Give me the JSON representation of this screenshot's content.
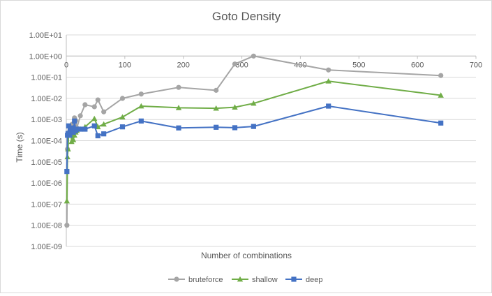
{
  "chart_data": {
    "type": "line",
    "title": "Goto Density",
    "xlabel": "Number of combinations",
    "ylabel": "Time (s)",
    "xlim": [
      0,
      700
    ],
    "xticks": [
      "0",
      "100",
      "200",
      "300",
      "400",
      "500",
      "600",
      "700"
    ],
    "xtick_values": [
      0,
      100,
      200,
      300,
      400,
      500,
      600,
      700
    ],
    "yscale": "log",
    "ylim": [
      1e-09,
      10
    ],
    "yticks": [
      "1.00E-09",
      "1.00E-08",
      "1.00E-07",
      "1.00E-06",
      "1.00E-05",
      "1.00E-04",
      "1.00E-03",
      "1.00E-02",
      "1.00E-01",
      "1.00E+00",
      "1.00E+01"
    ],
    "ytick_values": [
      1e-09,
      1e-08,
      1e-07,
      1e-06,
      1e-05,
      0.0001,
      0.001,
      0.01,
      0.1,
      1,
      10
    ],
    "grid": "horizontal",
    "legend_position": "bottom",
    "series": [
      {
        "name": "bruteforce",
        "color": "#a5a5a5",
        "marker": "circle",
        "points": [
          [
            1,
            1e-08
          ],
          [
            2,
            4e-05
          ],
          [
            4,
            0.0002
          ],
          [
            6,
            0.0003
          ],
          [
            8,
            0.0004
          ],
          [
            9,
            0.0003
          ],
          [
            10,
            0.0006
          ],
          [
            12,
            0.0005
          ],
          [
            14,
            0.0012
          ],
          [
            16,
            0.0009
          ],
          [
            18,
            0.0004
          ],
          [
            24,
            0.0015
          ],
          [
            32,
            0.005
          ],
          [
            48,
            0.004
          ],
          [
            54,
            0.0085
          ],
          [
            64,
            0.0023
          ],
          [
            96,
            0.01
          ],
          [
            128,
            0.016
          ],
          [
            192,
            0.033
          ],
          [
            256,
            0.024
          ],
          [
            288,
            0.42
          ],
          [
            320,
            1.0
          ],
          [
            448,
            0.22
          ],
          [
            640,
            0.12
          ]
        ]
      },
      {
        "name": "shallow",
        "color": "#70ad47",
        "marker": "triangle",
        "points": [
          [
            1,
            1.4e-07
          ],
          [
            2,
            1.7e-05
          ],
          [
            3,
            4e-05
          ],
          [
            4,
            0.0002
          ],
          [
            6,
            0.0003
          ],
          [
            8,
            0.0002
          ],
          [
            9,
            9e-05
          ],
          [
            10,
            0.00025
          ],
          [
            12,
            0.00011
          ],
          [
            14,
            0.00018
          ],
          [
            16,
            0.00025
          ],
          [
            18,
            0.0003
          ],
          [
            24,
            0.00035
          ],
          [
            32,
            0.00045
          ],
          [
            48,
            0.0011
          ],
          [
            54,
            0.00045
          ],
          [
            64,
            0.0006
          ],
          [
            96,
            0.0013
          ],
          [
            128,
            0.0043
          ],
          [
            192,
            0.0036
          ],
          [
            256,
            0.0034
          ],
          [
            288,
            0.0038
          ],
          [
            320,
            0.0058
          ],
          [
            448,
            0.065
          ],
          [
            640,
            0.014
          ]
        ]
      },
      {
        "name": "deep",
        "color": "#4472c4",
        "marker": "square",
        "points": [
          [
            1,
            3.5e-06
          ],
          [
            2,
            0.00018
          ],
          [
            3,
            0.00022
          ],
          [
            4,
            0.0005
          ],
          [
            6,
            0.00018
          ],
          [
            8,
            0.0003
          ],
          [
            9,
            0.00035
          ],
          [
            10,
            0.0004
          ],
          [
            12,
            0.00025
          ],
          [
            14,
            0.00085
          ],
          [
            16,
            0.0003
          ],
          [
            18,
            0.00035
          ],
          [
            24,
            0.00035
          ],
          [
            32,
            0.00035
          ],
          [
            48,
            0.0005
          ],
          [
            54,
            0.00017
          ],
          [
            64,
            0.00021
          ],
          [
            96,
            0.00045
          ],
          [
            128,
            0.00085
          ],
          [
            192,
            0.0004
          ],
          [
            256,
            0.00043
          ],
          [
            288,
            0.00041
          ],
          [
            320,
            0.00047
          ],
          [
            448,
            0.0043
          ],
          [
            640,
            0.00068
          ]
        ]
      }
    ]
  }
}
